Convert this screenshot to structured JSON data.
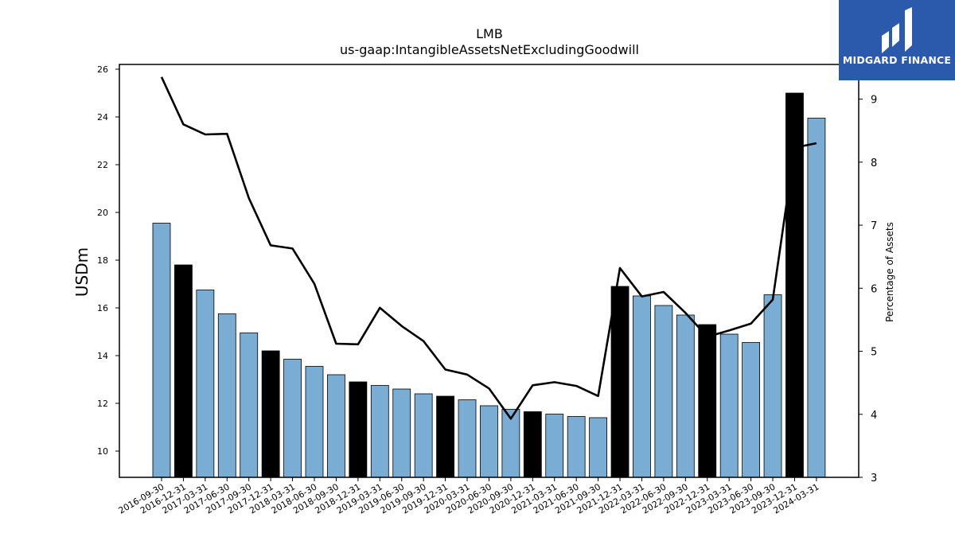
{
  "chart_data": {
    "type": "bar",
    "title": "LMB",
    "subtitle": "us-gaap:IntangibleAssetsNetExcludingGoodwill",
    "ylabel": "USDm",
    "y2label": "Percentage of Assets",
    "ylim": [
      8.9,
      26.2
    ],
    "y2lim": [
      3.0,
      9.55
    ],
    "yticks": [
      10,
      12,
      14,
      16,
      18,
      20,
      22,
      24,
      26
    ],
    "y2ticks": [
      3,
      4,
      5,
      6,
      7,
      8,
      9
    ],
    "categories": [
      "2016-09-30",
      "2016-12-31",
      "2017-03-31",
      "2017-06-30",
      "2017-09-30",
      "2017-12-31",
      "2018-03-31",
      "2018-06-30",
      "2018-09-30",
      "2018-12-31",
      "2019-03-31",
      "2019-06-30",
      "2019-09-30",
      "2019-12-31",
      "2020-03-31",
      "2020-06-30",
      "2020-09-30",
      "2020-12-31",
      "2021-03-31",
      "2021-06-30",
      "2021-09-30",
      "2021-12-31",
      "2022-03-31",
      "2022-06-30",
      "2022-09-30",
      "2022-12-31",
      "2023-03-31",
      "2023-06-30",
      "2023-09-30",
      "2023-12-31",
      "2024-03-31"
    ],
    "series": [
      {
        "type": "bar",
        "axis": "left",
        "values": [
          19.55,
          17.8,
          16.75,
          15.75,
          14.95,
          14.2,
          13.85,
          13.55,
          13.2,
          12.9,
          12.75,
          12.6,
          12.4,
          12.3,
          12.15,
          11.9,
          11.75,
          11.65,
          11.55,
          11.45,
          11.4,
          16.9,
          16.5,
          16.1,
          15.7,
          15.3,
          14.9,
          14.55,
          16.55,
          25.0,
          23.95
        ],
        "highlight": [
          false,
          true,
          false,
          false,
          false,
          true,
          false,
          false,
          false,
          true,
          false,
          false,
          false,
          true,
          false,
          false,
          false,
          true,
          false,
          false,
          false,
          true,
          false,
          false,
          false,
          true,
          false,
          false,
          false,
          true,
          false
        ]
      },
      {
        "type": "line",
        "axis": "right",
        "values": [
          9.35,
          8.6,
          8.44,
          8.45,
          7.43,
          6.68,
          6.63,
          6.07,
          5.12,
          5.11,
          5.69,
          5.4,
          5.16,
          4.71,
          4.63,
          4.41,
          3.93,
          4.46,
          4.51,
          4.45,
          4.29,
          6.32,
          5.87,
          5.94,
          5.61,
          5.23,
          5.33,
          5.44,
          5.82,
          8.23,
          8.3
        ]
      }
    ],
    "colors": {
      "bar": "#7aadd4",
      "bar_highlight": "#000000",
      "line": "#000000"
    }
  },
  "logo": {
    "text": "MIDGARD FINANCE",
    "color": "#2b5aad"
  }
}
